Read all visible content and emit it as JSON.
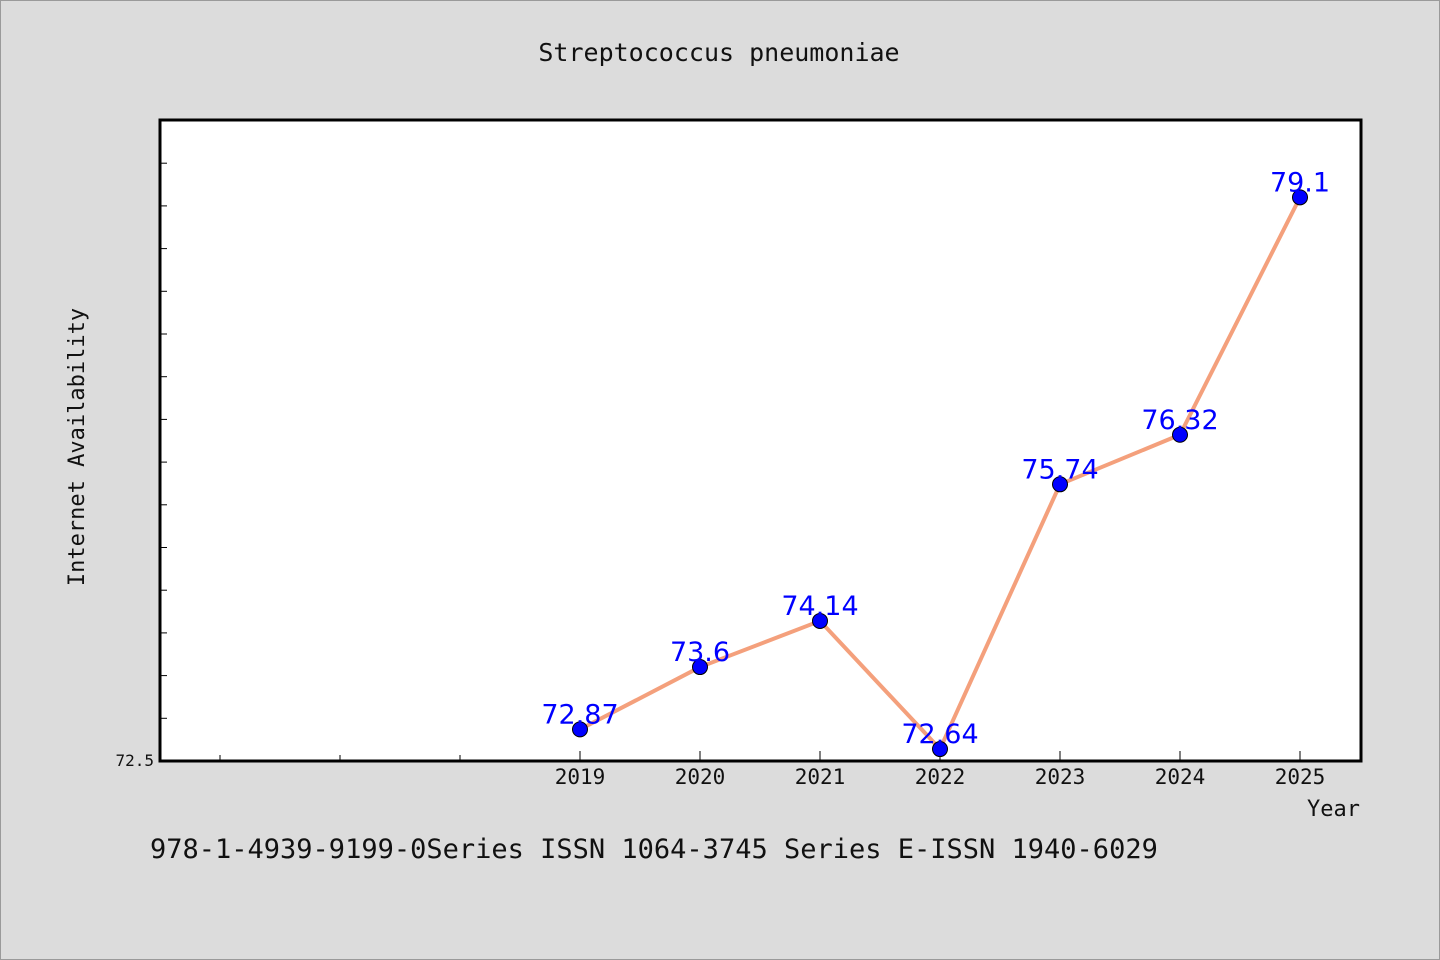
{
  "chart_data": {
    "type": "line",
    "title": "Streptococcus pneumoniae",
    "xlabel": "Year",
    "ylabel": "Internet Availability",
    "categories": [
      "2019",
      "2020",
      "2021",
      "2022",
      "2023",
      "2024",
      "2025"
    ],
    "series": [
      {
        "values": [
          72.87,
          73.6,
          74.14,
          72.64,
          75.74,
          76.32,
          79.1
        ]
      }
    ],
    "data_labels": [
      "72.87",
      "73.6",
      "74.14",
      "72.64",
      "75.74",
      "76.32",
      "79.1"
    ],
    "ylim": [
      72.5,
      80.0
    ],
    "ytick_labels": [
      "72.5"
    ],
    "grid": false,
    "line_color": "#f4a07c",
    "marker_color": "#0000ff",
    "label_color": "#0000ff"
  },
  "footer": {
    "text": "978-1-4939-9199-0Series ISSN 1064-3745 Series E-ISSN 1940-6029"
  }
}
